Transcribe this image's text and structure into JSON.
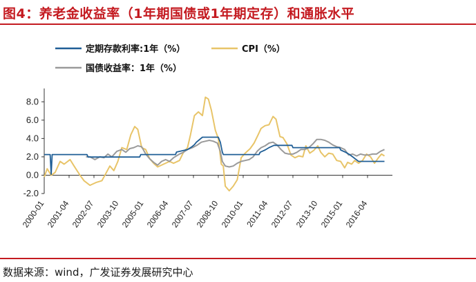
{
  "title": "图4：养老金收益率（1年期国债或1年期定存）和通胀水平",
  "source": "数据来源：wind，广发证券发展研究中心",
  "colors": {
    "accent": "#c41a20"
  },
  "chart_data": {
    "type": "line",
    "ylim": [
      -2.0,
      9.0
    ],
    "yticks": [
      "8.0",
      "6.0",
      "4.0",
      "2.0",
      "0.0",
      "-2.0"
    ],
    "ytick_values": [
      8,
      6,
      4,
      2,
      0,
      -2
    ],
    "xticks": [
      "2000-01",
      "2001-04",
      "2002-07",
      "2003-10",
      "2005-01",
      "2006-04",
      "2007-07",
      "2008-10",
      "2010-01",
      "2011-04",
      "2012-07",
      "2013-10",
      "2015-01",
      "2016-04"
    ],
    "xtick_values": [
      2000.0,
      2001.25,
      2002.5,
      2003.75,
      2005.0,
      2006.25,
      2007.5,
      2008.75,
      2010.0,
      2011.25,
      2012.5,
      2013.75,
      2015.0,
      2016.25
    ],
    "xlim": [
      2000.0,
      2017.5
    ],
    "grid": false,
    "legend_position": "top",
    "series": [
      {
        "name": "定期存款利率:1年（%）",
        "color": "#1f5e96",
        "points": [
          [
            2000.0,
            2.25
          ],
          [
            2000.3,
            2.25
          ],
          [
            2000.35,
            0.1
          ],
          [
            2000.4,
            2.25
          ],
          [
            2002.15,
            2.25
          ],
          [
            2002.2,
            1.98
          ],
          [
            2004.8,
            1.98
          ],
          [
            2004.85,
            2.25
          ],
          [
            2006.6,
            2.25
          ],
          [
            2006.65,
            2.52
          ],
          [
            2007.2,
            2.79
          ],
          [
            2007.4,
            3.06
          ],
          [
            2007.55,
            3.33
          ],
          [
            2007.65,
            3.6
          ],
          [
            2007.95,
            4.14
          ],
          [
            2008.75,
            4.14
          ],
          [
            2008.8,
            3.87
          ],
          [
            2008.85,
            3.6
          ],
          [
            2008.95,
            2.52
          ],
          [
            2009.0,
            2.25
          ],
          [
            2010.8,
            2.25
          ],
          [
            2010.85,
            2.5
          ],
          [
            2011.1,
            2.75
          ],
          [
            2011.3,
            3.0
          ],
          [
            2011.55,
            3.25
          ],
          [
            2012.45,
            3.25
          ],
          [
            2012.5,
            3.0
          ],
          [
            2014.85,
            3.0
          ],
          [
            2014.9,
            2.75
          ],
          [
            2015.15,
            2.5
          ],
          [
            2015.35,
            2.25
          ],
          [
            2015.5,
            2.0
          ],
          [
            2015.65,
            1.75
          ],
          [
            2015.8,
            1.5
          ],
          [
            2017.1,
            1.5
          ]
        ]
      },
      {
        "name": "CPI（%）",
        "color": "#e8c468",
        "points": [
          [
            2000.0,
            -0.2
          ],
          [
            2000.15,
            0.7
          ],
          [
            2000.35,
            0.0
          ],
          [
            2000.55,
            0.3
          ],
          [
            2000.8,
            1.5
          ],
          [
            2001.0,
            1.2
          ],
          [
            2001.3,
            1.7
          ],
          [
            2001.5,
            1.0
          ],
          [
            2001.8,
            0.0
          ],
          [
            2002.0,
            -0.6
          ],
          [
            2002.3,
            -1.1
          ],
          [
            2002.6,
            -0.8
          ],
          [
            2002.9,
            -0.6
          ],
          [
            2003.1,
            0.2
          ],
          [
            2003.3,
            1.0
          ],
          [
            2003.5,
            0.5
          ],
          [
            2003.7,
            1.5
          ],
          [
            2003.9,
            3.0
          ],
          [
            2004.15,
            2.8
          ],
          [
            2004.35,
            4.4
          ],
          [
            2004.55,
            5.3
          ],
          [
            2004.7,
            5.0
          ],
          [
            2004.9,
            3.0
          ],
          [
            2005.1,
            2.8
          ],
          [
            2005.3,
            1.8
          ],
          [
            2005.5,
            1.3
          ],
          [
            2005.7,
            0.9
          ],
          [
            2006.0,
            1.2
          ],
          [
            2006.3,
            1.5
          ],
          [
            2006.5,
            1.3
          ],
          [
            2006.8,
            1.6
          ],
          [
            2007.0,
            2.5
          ],
          [
            2007.2,
            3.0
          ],
          [
            2007.35,
            4.4
          ],
          [
            2007.55,
            6.5
          ],
          [
            2007.75,
            6.9
          ],
          [
            2007.95,
            6.5
          ],
          [
            2008.1,
            8.5
          ],
          [
            2008.25,
            8.3
          ],
          [
            2008.4,
            7.1
          ],
          [
            2008.6,
            4.9
          ],
          [
            2008.75,
            4.0
          ],
          [
            2008.9,
            1.2
          ],
          [
            2009.0,
            1.0
          ],
          [
            2009.1,
            -1.2
          ],
          [
            2009.3,
            -1.7
          ],
          [
            2009.5,
            -1.2
          ],
          [
            2009.7,
            -0.5
          ],
          [
            2009.9,
            1.9
          ],
          [
            2010.1,
            2.4
          ],
          [
            2010.35,
            2.9
          ],
          [
            2010.55,
            3.5
          ],
          [
            2010.75,
            4.4
          ],
          [
            2010.9,
            5.1
          ],
          [
            2011.1,
            5.4
          ],
          [
            2011.3,
            5.5
          ],
          [
            2011.5,
            6.4
          ],
          [
            2011.65,
            6.1
          ],
          [
            2011.85,
            4.2
          ],
          [
            2012.0,
            4.1
          ],
          [
            2012.2,
            3.4
          ],
          [
            2012.4,
            2.2
          ],
          [
            2012.6,
            1.9
          ],
          [
            2012.8,
            2.1
          ],
          [
            2013.0,
            2.0
          ],
          [
            2013.15,
            3.2
          ],
          [
            2013.35,
            2.4
          ],
          [
            2013.55,
            2.7
          ],
          [
            2013.75,
            3.2
          ],
          [
            2013.9,
            2.5
          ],
          [
            2014.1,
            2.0
          ],
          [
            2014.3,
            2.4
          ],
          [
            2014.5,
            2.3
          ],
          [
            2014.7,
            1.6
          ],
          [
            2014.9,
            1.5
          ],
          [
            2015.1,
            0.8
          ],
          [
            2015.25,
            1.4
          ],
          [
            2015.45,
            1.2
          ],
          [
            2015.6,
            1.6
          ],
          [
            2015.8,
            1.3
          ],
          [
            2016.0,
            1.6
          ],
          [
            2016.2,
            2.3
          ],
          [
            2016.4,
            2.0
          ],
          [
            2016.6,
            1.3
          ],
          [
            2016.8,
            1.9
          ],
          [
            2016.95,
            2.3
          ],
          [
            2017.1,
            2.1
          ]
        ]
      },
      {
        "name": "国债收益率：1年（%）",
        "color": "#9a9a9a",
        "points": [
          [
            2002.1,
            2.0
          ],
          [
            2002.3,
            2.0
          ],
          [
            2002.55,
            1.7
          ],
          [
            2002.8,
            2.0
          ],
          [
            2003.0,
            1.9
          ],
          [
            2003.2,
            2.3
          ],
          [
            2003.4,
            2.0
          ],
          [
            2003.65,
            2.6
          ],
          [
            2003.9,
            2.8
          ],
          [
            2004.1,
            2.5
          ],
          [
            2004.3,
            2.9
          ],
          [
            2004.5,
            3.0
          ],
          [
            2004.7,
            3.2
          ],
          [
            2004.9,
            3.1
          ],
          [
            2005.1,
            2.3
          ],
          [
            2005.3,
            1.8
          ],
          [
            2005.5,
            1.4
          ],
          [
            2005.7,
            1.1
          ],
          [
            2005.9,
            1.5
          ],
          [
            2006.1,
            1.7
          ],
          [
            2006.3,
            1.5
          ],
          [
            2006.5,
            1.9
          ],
          [
            2006.8,
            2.3
          ],
          [
            2007.0,
            2.5
          ],
          [
            2007.2,
            2.8
          ],
          [
            2007.45,
            3.0
          ],
          [
            2007.7,
            3.3
          ],
          [
            2007.9,
            3.6
          ],
          [
            2008.1,
            3.7
          ],
          [
            2008.3,
            3.8
          ],
          [
            2008.5,
            3.7
          ],
          [
            2008.7,
            3.5
          ],
          [
            2008.85,
            2.6
          ],
          [
            2008.95,
            1.5
          ],
          [
            2009.1,
            1.0
          ],
          [
            2009.3,
            0.9
          ],
          [
            2009.5,
            1.0
          ],
          [
            2009.7,
            1.3
          ],
          [
            2009.9,
            1.5
          ],
          [
            2010.1,
            1.6
          ],
          [
            2010.3,
            1.7
          ],
          [
            2010.5,
            2.0
          ],
          [
            2010.7,
            2.6
          ],
          [
            2010.9,
            3.0
          ],
          [
            2011.1,
            3.2
          ],
          [
            2011.3,
            3.5
          ],
          [
            2011.5,
            3.6
          ],
          [
            2011.7,
            3.3
          ],
          [
            2011.9,
            2.8
          ],
          [
            2012.1,
            2.4
          ],
          [
            2012.3,
            2.3
          ],
          [
            2012.5,
            2.3
          ],
          [
            2012.7,
            2.5
          ],
          [
            2012.9,
            2.8
          ],
          [
            2013.1,
            2.8
          ],
          [
            2013.3,
            3.0
          ],
          [
            2013.5,
            3.4
          ],
          [
            2013.7,
            3.9
          ],
          [
            2013.9,
            3.9
          ],
          [
            2014.1,
            3.8
          ],
          [
            2014.3,
            3.6
          ],
          [
            2014.5,
            3.3
          ],
          [
            2014.7,
            3.1
          ],
          [
            2014.9,
            3.0
          ],
          [
            2015.1,
            2.8
          ],
          [
            2015.3,
            2.2
          ],
          [
            2015.5,
            2.3
          ],
          [
            2015.7,
            2.1
          ],
          [
            2015.9,
            2.3
          ],
          [
            2016.1,
            2.2
          ],
          [
            2016.3,
            2.2
          ],
          [
            2016.5,
            2.3
          ],
          [
            2016.7,
            2.3
          ],
          [
            2016.9,
            2.6
          ],
          [
            2017.1,
            2.8
          ]
        ]
      }
    ]
  }
}
